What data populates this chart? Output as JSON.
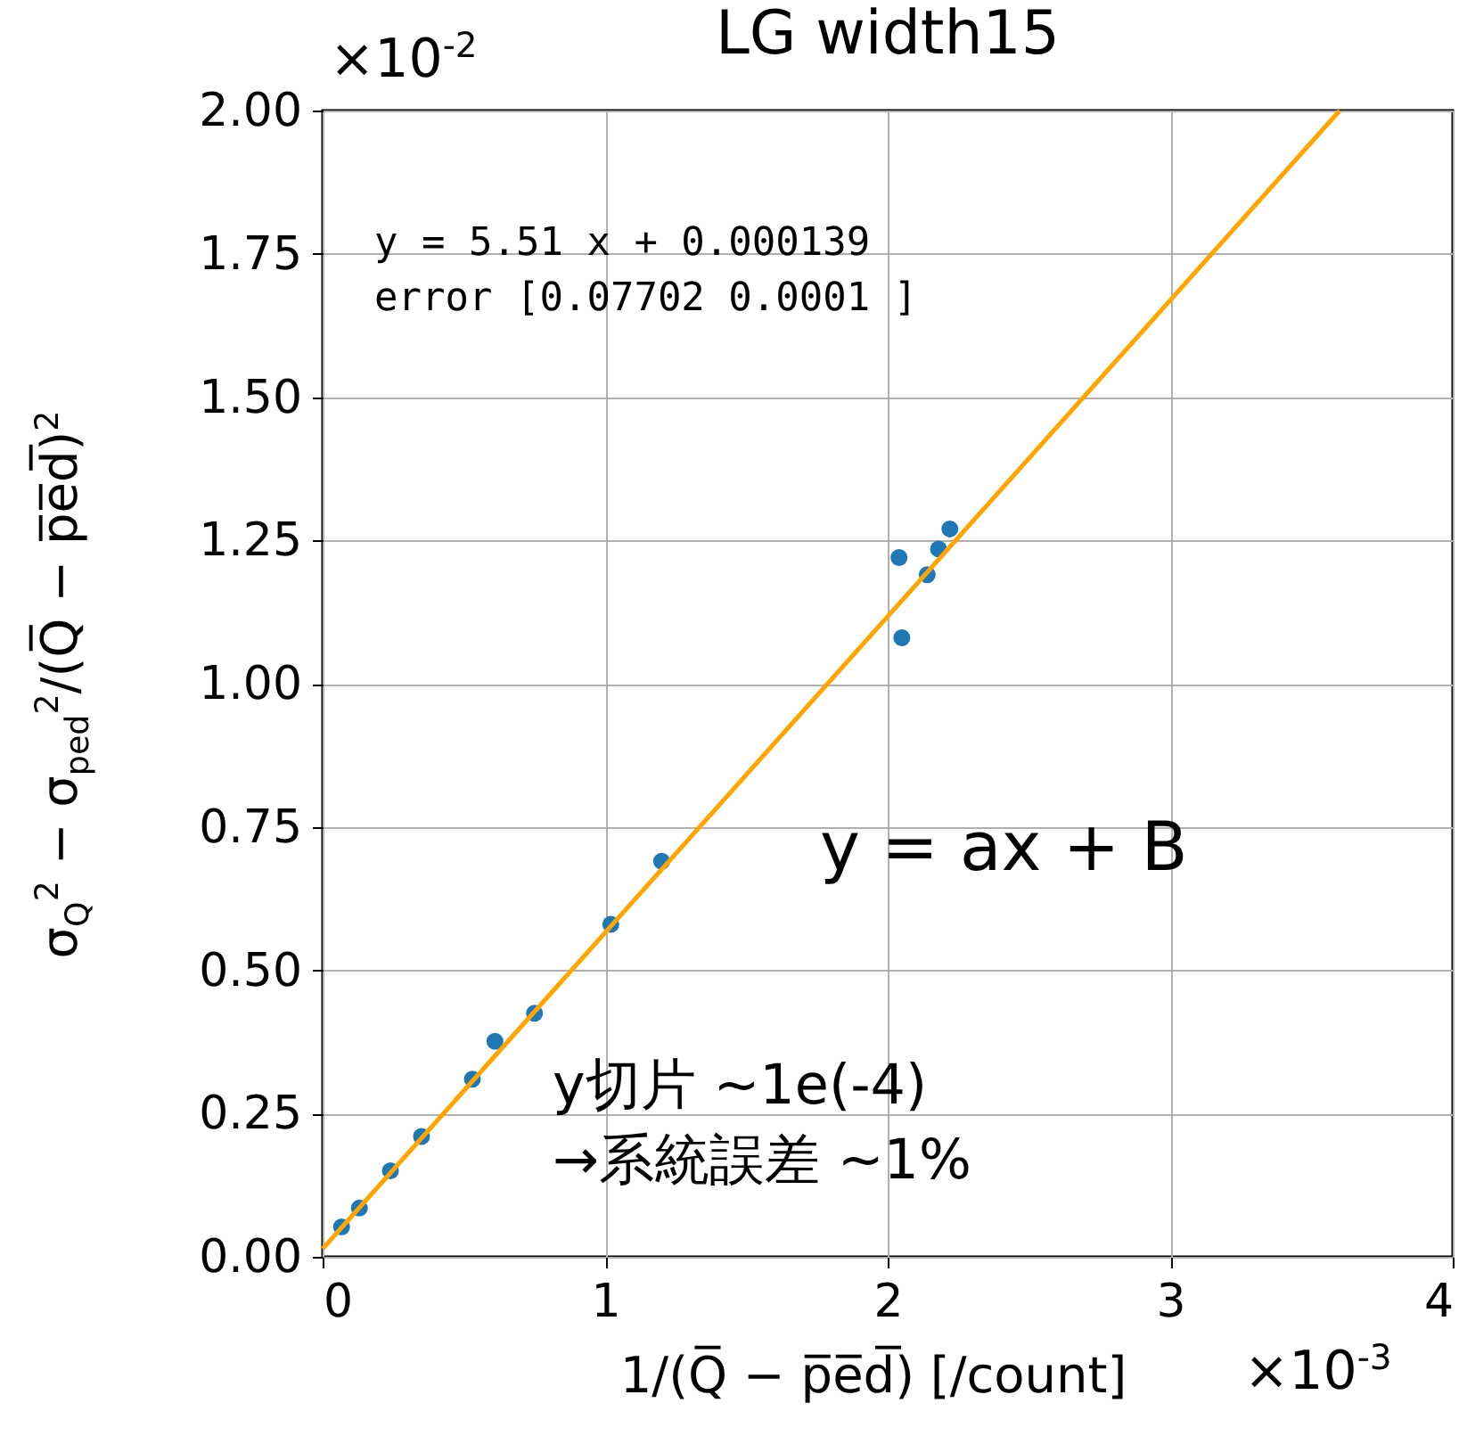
{
  "chart_data": {
    "type": "scatter",
    "title": "LG width15",
    "xlabel": "1/(Q̅ − p̅e̅d̅) [/count]",
    "ylabel": "σ$_{Q}$$^{2}$ − σ$_{ped}$$^{2}$/(Q̅ − p̅e̅d̅)$^{2}$",
    "annotations": [
      "×10$^{-2}$",
      "×10$^{-3}$",
      "y = 5.51 x + 0.000139",
      "error [0.07702 0.0001 ]",
      "y = ax + B",
      "y切片 ~1e(-4)",
      "→系統誤差 ~1%"
    ],
    "xlim": [
      0,
      4
    ],
    "xticks": [
      0,
      1,
      2,
      3,
      4
    ],
    "ylim": [
      0,
      2
    ],
    "yticks": [
      {
        "value": 0,
        "label": "0.00"
      },
      0.25,
      {
        "value": 0.5,
        "label": "0.50"
      },
      0.75,
      {
        "value": 1,
        "label": "1.00"
      },
      1.25,
      {
        "value": 1.5,
        "label": "1.50"
      },
      1.75,
      {
        "value": 2,
        "label": "2.00"
      }
    ],
    "grid": true,
    "marker": "circle",
    "series": [
      {
        "type": "scatter",
        "color": "#1f77b4",
        "x": [
          0.067,
          0.13,
          0.24,
          0.35,
          0.53,
          0.61,
          0.75,
          1.02,
          1.2,
          2.04,
          2.05,
          2.14,
          2.18,
          2.22
        ],
        "values": [
          0.052,
          0.085,
          0.15,
          0.21,
          0.31,
          0.376,
          0.425,
          0.58,
          0.69,
          1.22,
          1.08,
          1.19,
          1.235,
          1.27
        ]
      },
      {
        "type": "line",
        "color": "#ffa500",
        "marker": "none",
        "x": [
          0,
          3.6
        ],
        "values": [
          0.014,
          2.0
        ]
      }
    ]
  }
}
